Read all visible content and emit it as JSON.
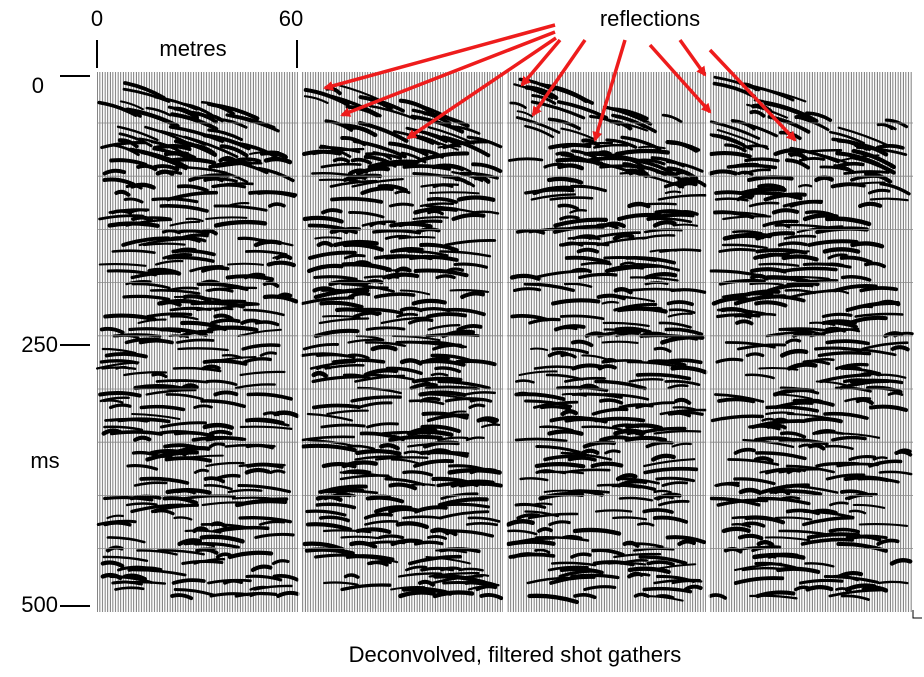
{
  "figure": {
    "x_axis": {
      "ticks": [
        "0",
        "60"
      ],
      "label": "metres"
    },
    "y_axis": {
      "ticks": [
        "0",
        "250",
        "500"
      ],
      "label": "ms"
    },
    "annotation": "reflections",
    "caption": "Deconvolved, filtered shot gathers"
  }
}
